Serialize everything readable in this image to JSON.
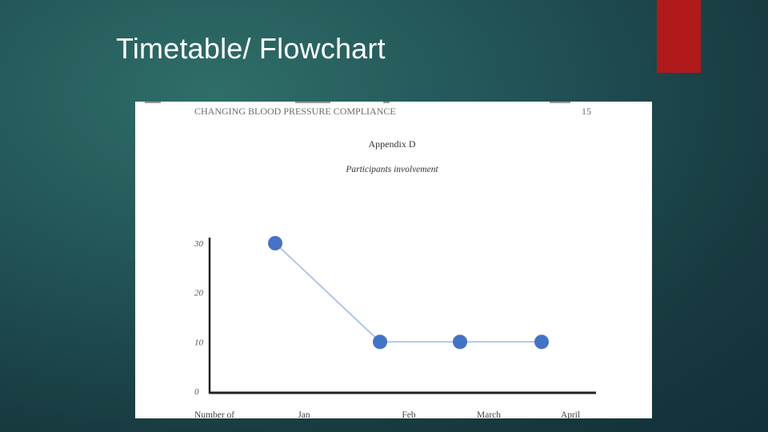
{
  "slide": {
    "title": "Timetable/ Flowchart",
    "accent_color": "#b01a1a"
  },
  "document": {
    "running_head": "CHANGING BLOOD PRESSURE COMPLIANCE",
    "page_number": "15",
    "appendix_heading": "Appendix D",
    "figure_title": "Participants involvement"
  },
  "chart_data": {
    "type": "line",
    "x_label": "Number of",
    "categories": [
      "Jan",
      "Feb",
      "March",
      "April"
    ],
    "values": [
      30,
      10,
      10,
      10
    ],
    "y_ticks": [
      "0",
      "10",
      "20",
      "30"
    ],
    "ylim": [
      0,
      30
    ],
    "grid": false,
    "legend": "none",
    "line_color": "#a8c0e8",
    "marker_color": "#4472c4"
  }
}
